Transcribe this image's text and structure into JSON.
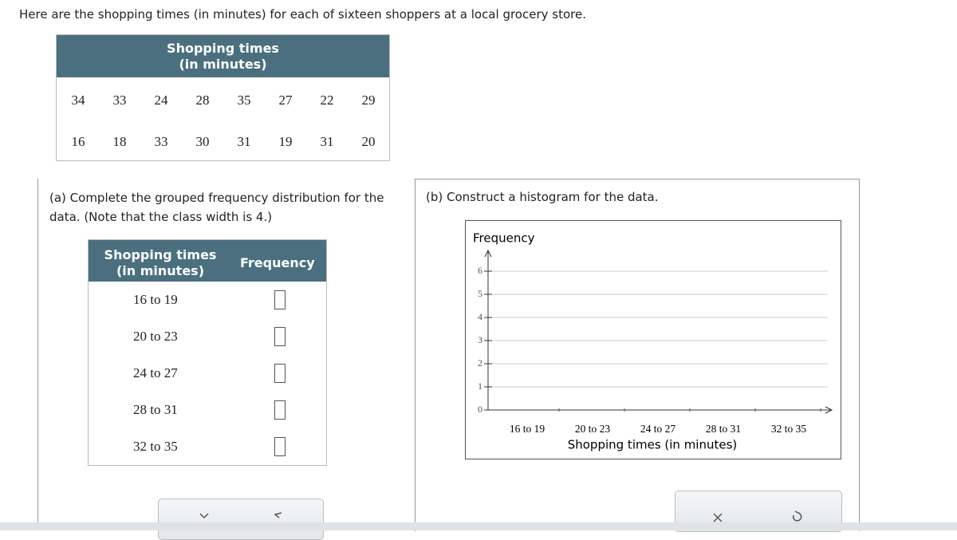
{
  "intro": "Here are the shopping times (in minutes) for each of sixteen shoppers at a local grocery store.",
  "data_table": {
    "title_lines": [
      "Shopping times",
      "(in minutes)"
    ],
    "rows": [
      [
        "34",
        "33",
        "24",
        "28",
        "35",
        "27",
        "22",
        "29"
      ],
      [
        "16",
        "18",
        "33",
        "30",
        "31",
        "19",
        "31",
        "20"
      ]
    ]
  },
  "part_a": {
    "prompt": "(a) Complete the grouped frequency distribution for the data. (Note that the class width is 4.)",
    "header_lines": [
      "Shopping times",
      "(in minutes)"
    ],
    "frequency_header": "Frequency",
    "classes": [
      "16 to 19",
      "20 to 23",
      "24 to 27",
      "28 to 31",
      "32 to 35"
    ]
  },
  "part_b": {
    "prompt": "(b) Construct a histogram for the data.",
    "histogram": {
      "ylabel": "Frequency",
      "xlabel": "Shopping times (in minutes)",
      "yticks": [
        0,
        1,
        2,
        3,
        4,
        5,
        6
      ],
      "categories": [
        "16 to 19",
        "20 to 23",
        "24 to 27",
        "28 to 31",
        "32 to 35"
      ]
    }
  }
}
